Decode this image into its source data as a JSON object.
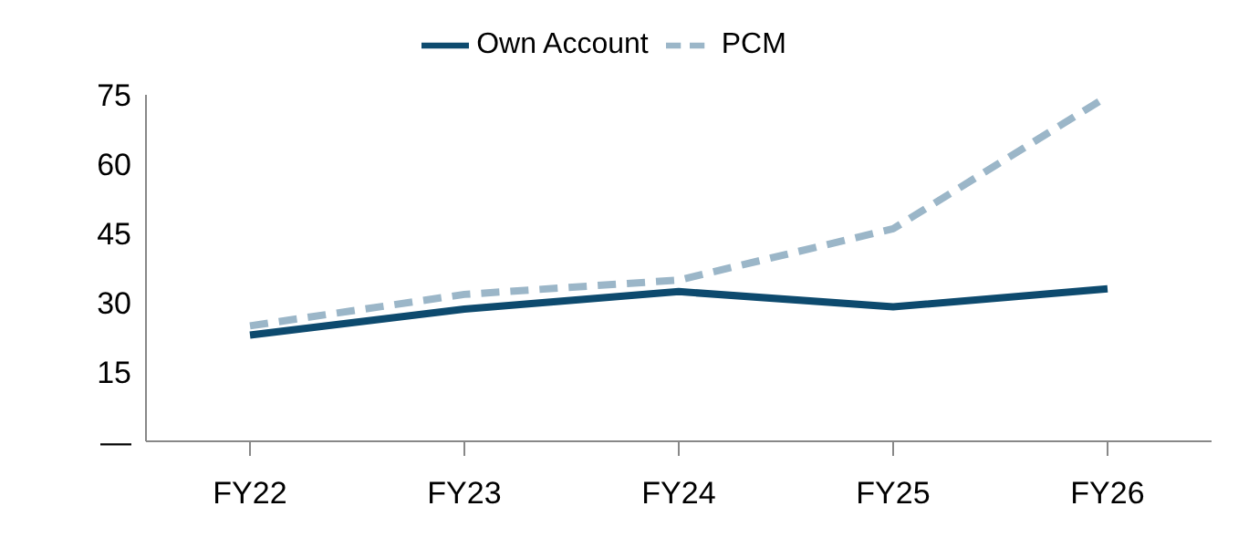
{
  "chart_data": {
    "type": "line",
    "categories": [
      "FY22",
      "FY23",
      "FY24",
      "FY25",
      "FY26"
    ],
    "series": [
      {
        "name": "Own Account",
        "color": "#0d4a6e",
        "line_style": "solid",
        "values": [
          23,
          28.6,
          32.4,
          29.1,
          33
        ]
      },
      {
        "name": "PCM",
        "color": "#9bb6c8",
        "line_style": "dashed",
        "values": [
          25,
          31.8,
          34.9,
          46,
          74.7
        ]
      }
    ],
    "ylim": [
      0,
      75
    ],
    "yticks": [
      {
        "value": 0,
        "label": "—"
      },
      15,
      30,
      45,
      60,
      75
    ],
    "grid": false,
    "legend": "top",
    "marker": "none"
  }
}
